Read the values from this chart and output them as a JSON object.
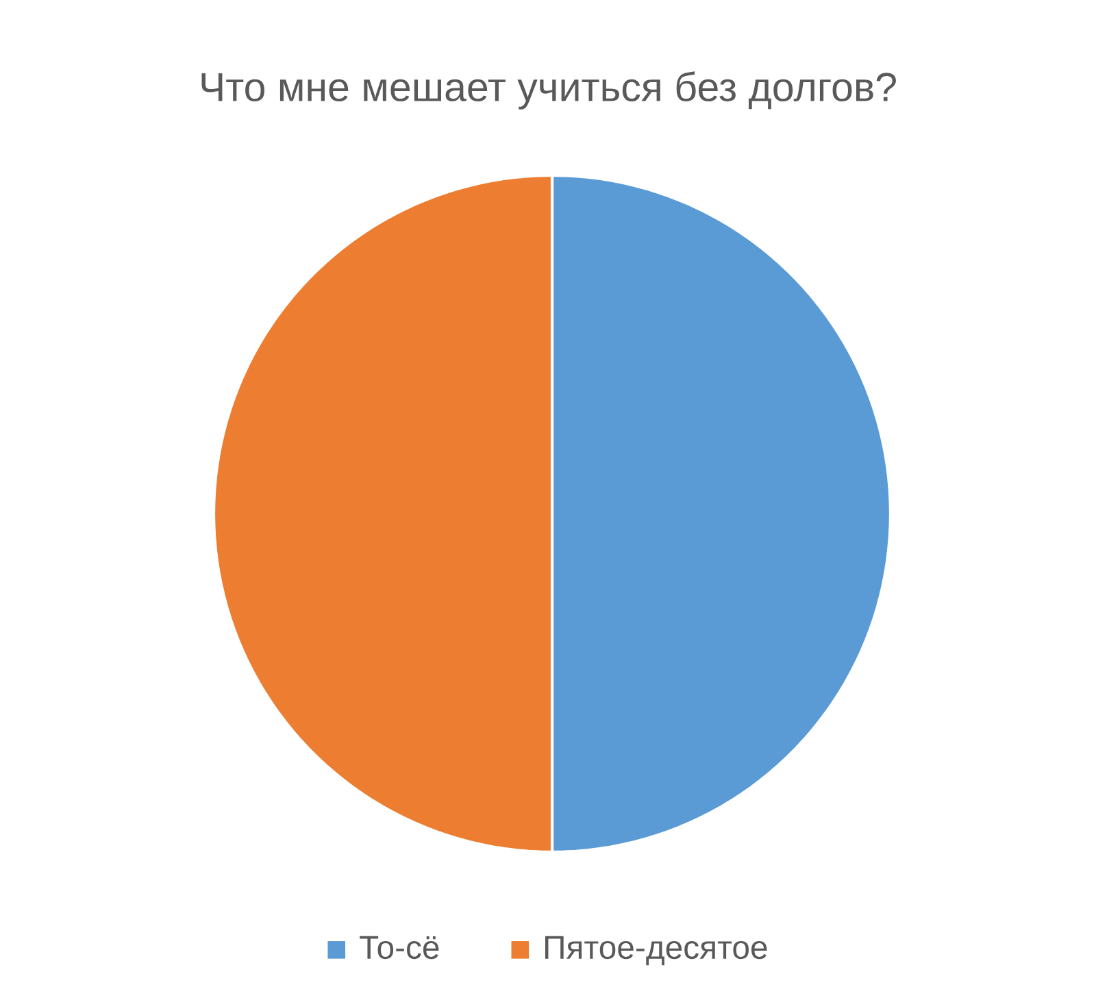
{
  "chart_data": {
    "type": "pie",
    "title": "Что мне мешает учиться без долгов?",
    "categories": [
      "То-сё",
      "Пятое-десятое"
    ],
    "values": [
      50,
      50
    ],
    "colors": [
      "#5b9bd5",
      "#ed7d31"
    ],
    "legend": "bottom"
  }
}
